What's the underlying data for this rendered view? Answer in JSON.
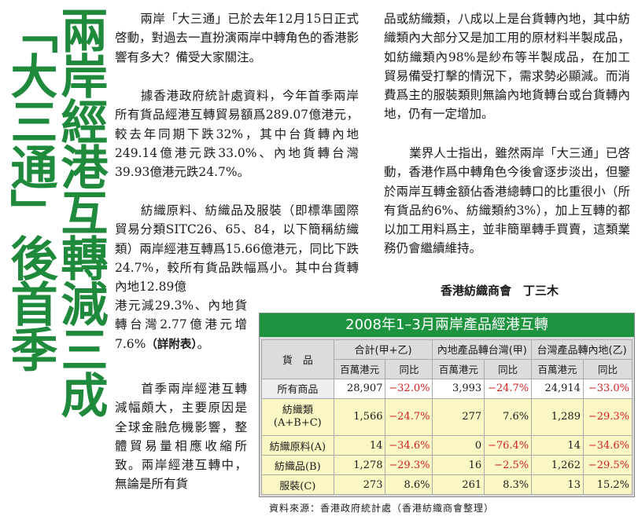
{
  "headline": {
    "line1": "兩岸經港互轉減三成",
    "line2": "「大三通」後首季"
  },
  "paragraphs": {
    "p1": "兩岸「大三通」已於去年12月15日正式啓動，對過去一直扮演兩岸中轉角色的香港影響有多大？備受大家關注。",
    "p2": "據香港政府統計處資料，今年首季兩岸所有貨品經港互轉貿易額爲289.07億港元，較去年同期下跌32%，其中台貨轉內地249.14億港元跌33.0%、內地貨轉台灣39.93億港元跌24.7%。",
    "p3": "紡織原料、紡織品及服裝（即標準國際貿易分類SITC26、65、84，以下簡稱紡織類）兩岸經港互轉爲15.66億港元，同比下跌24.7%，較所有貨品跌幅爲小。其中台貨轉內地12.89億",
    "p4a": "港元減29.3%、內地貨轉台灣2.77億港元增7.6%",
    "p4b": "（詳附表）",
    "p4c": "。",
    "p5": "首季兩岸經港互轉減幅頗大，主要原因是全球金融危機影響，整體貿易量相應收縮所致。兩岸經港互轉中，無論是所有貨",
    "p6": "品或紡織類，八成以上是台貨轉內地，其中紡織類內大部分又是加工用的原材料半製成品，如紡織類內98%是紗布等半製成品，在加工貿易備受打擊的情況下，需求勢必顯減。而消費爲主的服裝類則無論內地貨轉台或台貨轉內地，仍有一定增加。",
    "p7": "業界人士指出，雖然兩岸「大三通」已啓動，香港作爲中轉角色今後會逐步淡出，但鑒於兩岸互轉金額佔香港總轉口的比重很小（所有貨品約6%、紡織類約3%），加上互轉的都以加工用料爲主，並非簡單轉手買賣，這類業務仍會繼續維持。",
    "signature": "香港紡織商會　丁三木"
  },
  "table": {
    "title": "2008年1–3月兩岸產品經港互轉",
    "col_goods": "貨　品",
    "groups": [
      "合計(甲+乙)",
      "內地產品轉台灣(甲)",
      "台灣產品轉內地(乙)"
    ],
    "sub_value": "百萬港元",
    "sub_change": "同比",
    "rows": [
      {
        "label": "所有商品",
        "v": [
          "28,907",
          "3,993",
          "24,914"
        ],
        "c": [
          "−32.0%",
          "−24.7%",
          "−33.0%"
        ],
        "neg": [
          true,
          true,
          true
        ]
      },
      {
        "label": "紡織類(A+B+C)",
        "v": [
          "1,566",
          "277",
          "1,289"
        ],
        "c": [
          "−24.7%",
          "7.6%",
          "−29.3%"
        ],
        "neg": [
          true,
          false,
          true
        ]
      },
      {
        "label": "紡織原料(A)",
        "v": [
          "14",
          "0",
          "14"
        ],
        "c": [
          "−34.6%",
          "−76.4%",
          "−34.6%"
        ],
        "neg": [
          true,
          true,
          true
        ]
      },
      {
        "label": "紡織品(B)",
        "v": [
          "1,278",
          "16",
          "1,262"
        ],
        "c": [
          "−29.3%",
          "−2.5%",
          "−29.5%"
        ],
        "neg": [
          true,
          true,
          true
        ]
      },
      {
        "label": "服裝(C)",
        "v": [
          "273",
          "261",
          "13"
        ],
        "c": [
          "8.6%",
          "8.3%",
          "15.2%"
        ],
        "neg": [
          false,
          false,
          false
        ]
      }
    ],
    "source": "資料來源：香港政府統計處（香港紡織商會整理）"
  },
  "colors": {
    "headline": "#1f8a3c",
    "table_bar": "#1e9441",
    "negative": "#d42020",
    "highlight": "#fbf7c4"
  }
}
